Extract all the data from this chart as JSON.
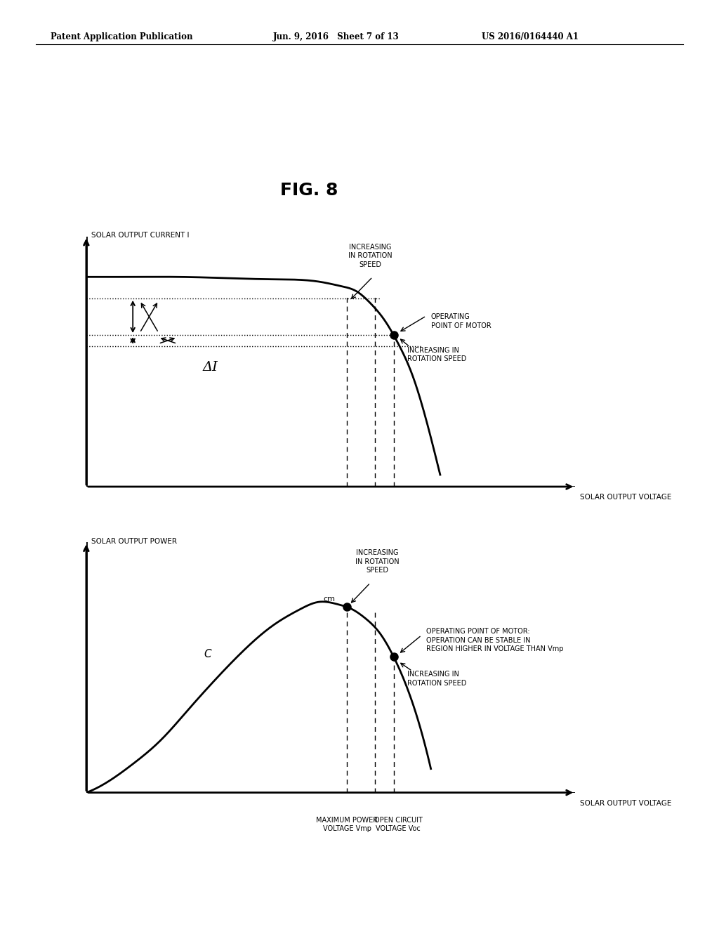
{
  "fig_title": "FIG. 8",
  "header_left": "Patent Application Publication",
  "header_mid": "Jun. 9, 2016   Sheet 7 of 13",
  "header_right": "US 2016/0164440 A1",
  "background_color": "#ffffff",
  "text_color": "#000000",
  "top_chart": {
    "ylabel": "SOLAR OUTPUT CURRENT I",
    "xlabel": "SOLAR OUTPUT VOLTAGE",
    "annotation_operating_point": "OPERATING\nPOINT OF MOTOR",
    "annotation_increasing_top": "INCREASING\nIN ROTATION\nSPEED",
    "annotation_increasing_bot": "INCREASING IN\nROTATION SPEED",
    "annotation_delta_i": "ΔI"
  },
  "bottom_chart": {
    "ylabel": "SOLAR OUTPUT POWER",
    "xlabel": "SOLAR OUTPUT VOLTAGE",
    "curve_label": "C",
    "peak_label": "cm",
    "annotation_increasing": "INCREASING\nIN ROTATION\nSPEED",
    "annotation_operating": "OPERATING POINT OF MOTOR:\nOPERATION CAN BE STABLE IN\nREGION HIGHER IN VOLTAGE THAN Vmp",
    "annotation_increasing_bot": "INCREASING IN\nROTATION SPEED",
    "xlabel_vmp": "MAXIMUM POWER\nVOLTAGE Vmp",
    "xlabel_voc": "OPEN CIRCUIT\nVOLTAGE Voc"
  }
}
